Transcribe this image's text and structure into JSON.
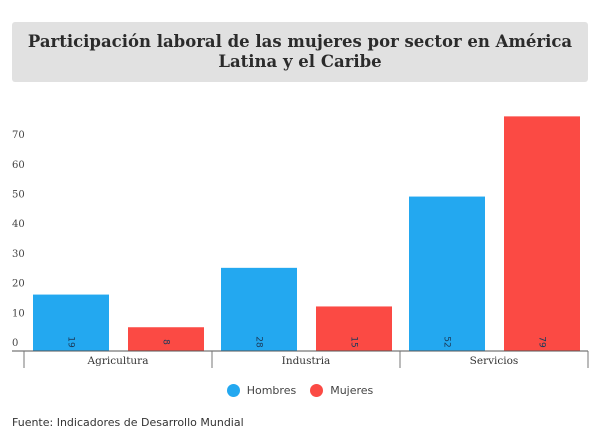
{
  "chart_data": {
    "type": "bar",
    "title": "Participación laboral de las mujeres por sector en América Latina y el Caribe",
    "categories": [
      "Agricultura",
      "Industria",
      "Servicios"
    ],
    "series": [
      {
        "name": "Hombres",
        "color": "#23a8f0",
        "values": [
          19,
          28,
          52
        ]
      },
      {
        "name": "Mujeres",
        "color": "#fb4a44",
        "values": [
          8,
          15,
          79
        ]
      }
    ],
    "xlabel": "",
    "ylabel": "",
    "ylim": [
      0,
      80
    ],
    "yticks": [
      0,
      10,
      20,
      30,
      40,
      50,
      60,
      70
    ],
    "grid": false,
    "legend_position": "bottom-center",
    "data_labels": "rotated inside base of bar"
  },
  "source": "Fuente: Indicadores de Desarrollo Mundial"
}
